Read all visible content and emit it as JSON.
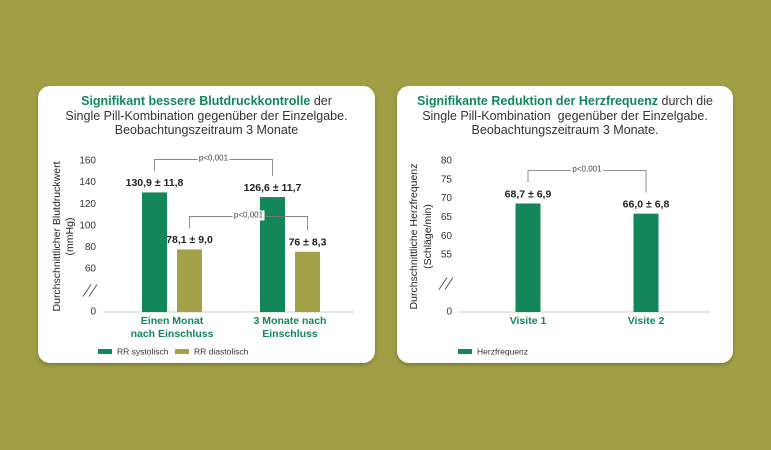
{
  "chart_data": [
    {
      "type": "bar",
      "title_highlight": "Signifikant bessere Blutdruckkontrolle",
      "title": "der",
      "subtitle_lines": [
        "Single Pill-Kombination gegenüber der Einzelgabe.",
        "Beobachtungszeitraum 3 Monate"
      ],
      "ylabel": [
        "Durchschnittlicher Blutdruckwert",
        "(mmHg)"
      ],
      "categories": [
        "Einen Monat nach Einschluss",
        "3 Monate nach Einschluss"
      ],
      "series": [
        {
          "name": "RR systolisch",
          "color": "#13875a",
          "values": [
            130.9,
            126.6
          ],
          "value_labels": [
            "130,9 ± 11,8",
            "126,6 ± 11,7"
          ]
        },
        {
          "name": "RR diastolisch",
          "color": "#a3a14a",
          "values": [
            78.1,
            76
          ],
          "value_labels": [
            "78,1 ± 9,0",
            "76 ± 8,3"
          ]
        }
      ],
      "annotations": [
        "p<0,001",
        "p<0,001"
      ],
      "ylim": [
        0,
        160
      ],
      "yticks": [
        0,
        60,
        80,
        100,
        120,
        140,
        160
      ],
      "axis_break": true
    },
    {
      "type": "bar",
      "title_highlight": "Signifikante Reduktion der Herzfrequenz",
      "title": "durch die",
      "subtitle_lines": [
        "Single Pill-Kombination  gegenüber der Einzelgabe.",
        "Beobachtungszeitraum 3 Monate."
      ],
      "ylabel": [
        "Durchschnittliche Herzfrequenz",
        "(Schläge/min)"
      ],
      "categories": [
        "Visite 1",
        "Visite 2"
      ],
      "series": [
        {
          "name": "Herzfrequenz",
          "color": "#13875a",
          "values": [
            68.7,
            66.0
          ],
          "value_labels": [
            "68,7 ± 6,9",
            "66,0 ± 6,8"
          ]
        }
      ],
      "annotations": [
        "p<0,001"
      ],
      "ylim": [
        0,
        80
      ],
      "yticks": [
        0,
        55,
        60,
        65,
        70,
        75,
        80
      ],
      "axis_break": true
    }
  ]
}
